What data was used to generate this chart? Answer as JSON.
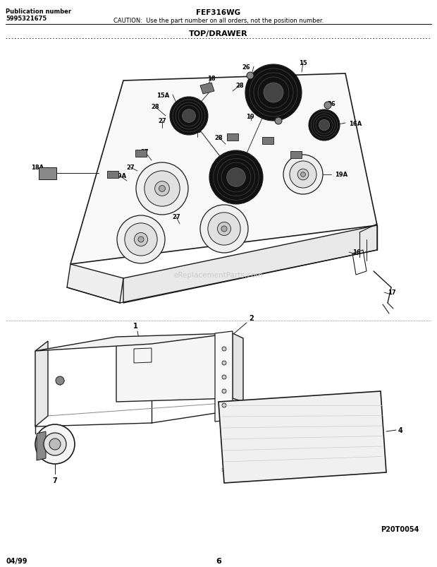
{
  "title": "FEF316WG",
  "caution": "CAUTION:  Use the part number on all orders, not the position number.",
  "pub_label": "Publication number",
  "pub_number": "5995321675",
  "section": "TOP/DRAWER",
  "page": "6",
  "date": "04/99",
  "image_code": "P20T0054",
  "watermark": "eReplacementParts.com",
  "bg_color": "#ffffff",
  "line_color": "#1a1a1a",
  "fig_width": 6.2,
  "fig_height": 8.04,
  "dpi": 100
}
